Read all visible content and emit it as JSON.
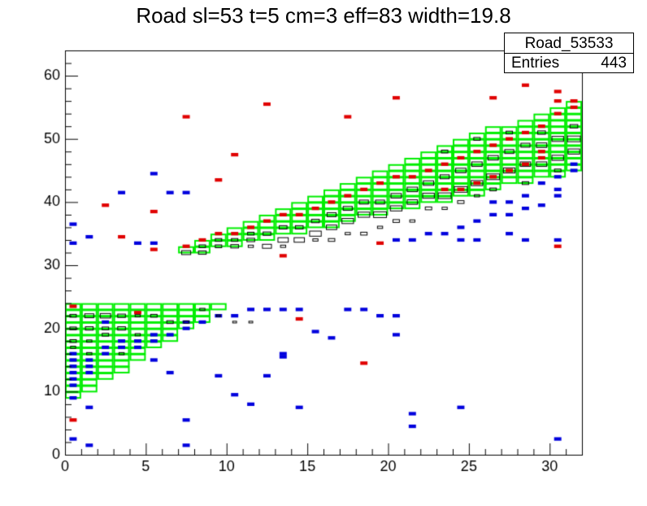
{
  "title": "Road sl=53 t=5 cm=3 eff=83 width=19.8",
  "stats": {
    "name": "Road_53533",
    "entries_label": "Entries",
    "entries_value": "443"
  },
  "colors": {
    "road": "#00ee00",
    "red_marks": "#e00000",
    "blue_marks": "#0000dd",
    "box": "#000000"
  },
  "chart_data": {
    "type": "heatmap",
    "title": "Road sl=53 t=5 cm=3 eff=83 width=19.8",
    "xlabel": "",
    "ylabel": "",
    "xlim": [
      0,
      32
    ],
    "ylim": [
      0,
      64
    ],
    "xticks": [
      0,
      5,
      10,
      15,
      20,
      25,
      30
    ],
    "yticks": [
      0,
      10,
      20,
      30,
      40,
      50,
      60
    ],
    "road_bands": [
      {
        "x_start": 0,
        "x_end": 16,
        "y_low_at_start": 9,
        "y_low_slope": 1.6,
        "y_high": 24
      },
      {
        "x_start": 7,
        "x_end": 32,
        "y_low_at_start": 32,
        "y_low_slope": 0.55,
        "y_high_at_start": 33,
        "y_high_slope": 0.95
      }
    ],
    "blue_points": [
      [
        0.5,
        14
      ],
      [
        0.5,
        13
      ],
      [
        0.5,
        15
      ],
      [
        0.5,
        12
      ],
      [
        0.5,
        16
      ],
      [
        0.5,
        11
      ],
      [
        1.5,
        14
      ],
      [
        1.5,
        13
      ],
      [
        1.5,
        15
      ],
      [
        2.5,
        16
      ],
      [
        2.5,
        17
      ],
      [
        3.5,
        17
      ],
      [
        3.5,
        18
      ],
      [
        4.5,
        18
      ],
      [
        4.5,
        17
      ],
      [
        5.5,
        19
      ],
      [
        5.5,
        18
      ],
      [
        6.5,
        19
      ],
      [
        7.5,
        20
      ],
      [
        7.5,
        21
      ],
      [
        8.5,
        21
      ],
      [
        9.5,
        22
      ],
      [
        10.5,
        22
      ],
      [
        11.5,
        23
      ],
      [
        12.5,
        23
      ],
      [
        13.5,
        23
      ],
      [
        14.5,
        23
      ],
      [
        5.5,
        15
      ],
      [
        6.5,
        13
      ],
      [
        2.5,
        21
      ],
      [
        1.5,
        7.5
      ],
      [
        0.5,
        9
      ],
      [
        0.5,
        2.5
      ],
      [
        1.5,
        1.5
      ],
      [
        7.5,
        1.5
      ],
      [
        7.5,
        5.5
      ],
      [
        10.5,
        9.5
      ],
      [
        11.5,
        8
      ],
      [
        13.5,
        16
      ],
      [
        13.5,
        15.5
      ],
      [
        14.5,
        7.5
      ],
      [
        17.5,
        23
      ],
      [
        18.5,
        23
      ],
      [
        19.5,
        22
      ],
      [
        20.5,
        22
      ],
      [
        20.5,
        19
      ],
      [
        21.5,
        4.5
      ],
      [
        21.5,
        6.5
      ],
      [
        24.5,
        7.5
      ],
      [
        30.5,
        2.5
      ],
      [
        15.5,
        19.5
      ],
      [
        16.5,
        18.5
      ],
      [
        9.5,
        12.5
      ],
      [
        12.5,
        12.5
      ],
      [
        0.5,
        36.5
      ],
      [
        0.5,
        33.5
      ],
      [
        1.5,
        34.5
      ],
      [
        3.5,
        41.5
      ],
      [
        4.5,
        33.5
      ],
      [
        5.5,
        33.5
      ],
      [
        7.5,
        41.5
      ],
      [
        5.5,
        44.5
      ],
      [
        6.5,
        41.5
      ],
      [
        30.5,
        42
      ],
      [
        30.5,
        41
      ],
      [
        29.5,
        39.5
      ],
      [
        28.5,
        39
      ],
      [
        27.5,
        38
      ],
      [
        26.5,
        38
      ],
      [
        25.5,
        37
      ],
      [
        24.5,
        36
      ],
      [
        23.5,
        35
      ],
      [
        22.5,
        35
      ],
      [
        21.5,
        34
      ],
      [
        20.5,
        34
      ],
      [
        24.5,
        34
      ],
      [
        25.5,
        34
      ],
      [
        27.5,
        35
      ],
      [
        28.5,
        34
      ],
      [
        30.5,
        34
      ],
      [
        31.5,
        45
      ],
      [
        31.5,
        46
      ],
      [
        30.5,
        44
      ],
      [
        29.5,
        43
      ],
      [
        28.5,
        41
      ],
      [
        27.5,
        40
      ],
      [
        26.5,
        40
      ]
    ],
    "red_points": [
      [
        7.5,
        33
      ],
      [
        8.5,
        34
      ],
      [
        9.5,
        35
      ],
      [
        10.5,
        35
      ],
      [
        11.5,
        36
      ],
      [
        12.5,
        37
      ],
      [
        13.5,
        38
      ],
      [
        14.5,
        38
      ],
      [
        15.5,
        39
      ],
      [
        16.5,
        40
      ],
      [
        17.5,
        41
      ],
      [
        18.5,
        42
      ],
      [
        19.5,
        43
      ],
      [
        20.5,
        44
      ],
      [
        21.5,
        44
      ],
      [
        22.5,
        45
      ],
      [
        23.5,
        46
      ],
      [
        24.5,
        47
      ],
      [
        25.5,
        48
      ],
      [
        26.5,
        49
      ],
      [
        27.5,
        50
      ],
      [
        28.5,
        51
      ],
      [
        29.5,
        52
      ],
      [
        30.5,
        54
      ],
      [
        31.5,
        55
      ],
      [
        30.5,
        56
      ],
      [
        31.5,
        56
      ],
      [
        30.5,
        57.5
      ],
      [
        28.5,
        58.5
      ],
      [
        26.5,
        56.5
      ],
      [
        20.5,
        56.5
      ],
      [
        17.5,
        53.5
      ],
      [
        12.5,
        55.5
      ],
      [
        7.5,
        53.5
      ],
      [
        10.5,
        47.5
      ],
      [
        9.5,
        43.5
      ],
      [
        5.5,
        38.5
      ],
      [
        2.5,
        39.5
      ],
      [
        3.5,
        34.5
      ],
      [
        5.5,
        32.5
      ],
      [
        0.5,
        5.5
      ],
      [
        13.5,
        31.5
      ],
      [
        19.5,
        33.5
      ],
      [
        30.5,
        33
      ],
      [
        14.5,
        21.5
      ],
      [
        18.5,
        14.5
      ],
      [
        4.5,
        22.5
      ],
      [
        0.5,
        23.5
      ],
      [
        29.5,
        48
      ],
      [
        29.5,
        47
      ],
      [
        28.5,
        46
      ],
      [
        27.5,
        45
      ],
      [
        26.5,
        44
      ],
      [
        25.5,
        43
      ],
      [
        24.5,
        42
      ],
      [
        23.5,
        42
      ]
    ],
    "black_boxes": [
      [
        0.5,
        22,
        0.5
      ],
      [
        1.5,
        22,
        0.7
      ],
      [
        2.5,
        22,
        0.8
      ],
      [
        3.5,
        22,
        0.6
      ],
      [
        4.5,
        22,
        0.4
      ],
      [
        5.5,
        22,
        0.5
      ],
      [
        6.5,
        21,
        0.5
      ],
      [
        7.5,
        21,
        0.4
      ],
      [
        0.5,
        20,
        0.5
      ],
      [
        1.5,
        20,
        0.6
      ],
      [
        2.5,
        20,
        0.5
      ],
      [
        3.5,
        20,
        0.6
      ],
      [
        4.5,
        19,
        0.4
      ],
      [
        0.5,
        18,
        0.5
      ],
      [
        1.5,
        18,
        0.4
      ],
      [
        2.5,
        19,
        0.5
      ],
      [
        0.5,
        17,
        0.4
      ],
      [
        1.5,
        16,
        0.4
      ],
      [
        3.5,
        16,
        0.4
      ],
      [
        8.5,
        23,
        0.4
      ],
      [
        9.5,
        22,
        0.3
      ],
      [
        10.5,
        21,
        0.3
      ],
      [
        11.5,
        21,
        0.3
      ],
      [
        7.5,
        32,
        0.7
      ],
      [
        8.5,
        32,
        0.6
      ],
      [
        9.5,
        33,
        0.5
      ],
      [
        10.5,
        33,
        0.6
      ],
      [
        11.5,
        34,
        0.6
      ],
      [
        12.5,
        33,
        0.7
      ],
      [
        13.5,
        34,
        0.8
      ],
      [
        14.5,
        34,
        0.8
      ],
      [
        15.5,
        35,
        0.9
      ],
      [
        16.5,
        36,
        0.8
      ],
      [
        17.5,
        37,
        0.9
      ],
      [
        18.5,
        38,
        0.9
      ],
      [
        19.5,
        38,
        1.0
      ],
      [
        20.5,
        39,
        0.9
      ],
      [
        21.5,
        40,
        0.8
      ],
      [
        22.5,
        41,
        0.9
      ],
      [
        23.5,
        41,
        1.0
      ],
      [
        24.5,
        42,
        1.0
      ],
      [
        25.5,
        43,
        0.9
      ],
      [
        26.5,
        44,
        1.0
      ],
      [
        27.5,
        45,
        0.9
      ],
      [
        28.5,
        46,
        0.8
      ],
      [
        29.5,
        46,
        0.8
      ],
      [
        30.5,
        47,
        0.9
      ],
      [
        31.5,
        48,
        0.9
      ],
      [
        31.5,
        50,
        1.0
      ],
      [
        30.5,
        50,
        0.9
      ],
      [
        29.5,
        49,
        0.8
      ],
      [
        28.5,
        49,
        0.7
      ],
      [
        27.5,
        48,
        0.7
      ],
      [
        26.5,
        47,
        0.8
      ],
      [
        25.5,
        46,
        0.8
      ],
      [
        24.5,
        45,
        0.8
      ],
      [
        23.5,
        44,
        0.7
      ],
      [
        22.5,
        43,
        0.8
      ],
      [
        21.5,
        42,
        0.8
      ],
      [
        20.5,
        41,
        0.8
      ],
      [
        19.5,
        40,
        0.7
      ],
      [
        18.5,
        40,
        0.7
      ],
      [
        17.5,
        39,
        0.7
      ],
      [
        16.5,
        38,
        0.7
      ],
      [
        15.5,
        37,
        0.6
      ],
      [
        14.5,
        36,
        0.6
      ],
      [
        13.5,
        36,
        0.6
      ],
      [
        12.5,
        35,
        0.6
      ],
      [
        11.5,
        35,
        0.5
      ],
      [
        10.5,
        34,
        0.5
      ],
      [
        9.5,
        34,
        0.5
      ],
      [
        8.5,
        33,
        0.5
      ],
      [
        16.5,
        34,
        0.5
      ],
      [
        18.5,
        35,
        0.5
      ],
      [
        20.5,
        37,
        0.5
      ],
      [
        22.5,
        39,
        0.5
      ],
      [
        24.5,
        40,
        0.5
      ],
      [
        26.5,
        42,
        0.5
      ],
      [
        28.5,
        43,
        0.5
      ],
      [
        30.5,
        45,
        0.5
      ],
      [
        29.5,
        51,
        0.6
      ],
      [
        31.5,
        52,
        0.6
      ],
      [
        27.5,
        51,
        0.5
      ],
      [
        25.5,
        50,
        0.5
      ],
      [
        23.5,
        48,
        0.5
      ],
      [
        19.5,
        36,
        0.4
      ],
      [
        17.5,
        35,
        0.4
      ],
      [
        15.5,
        34,
        0.4
      ],
      [
        13.5,
        33,
        0.4
      ],
      [
        11.5,
        33,
        0.4
      ],
      [
        21.5,
        37,
        0.4
      ],
      [
        23.5,
        39,
        0.4
      ],
      [
        25.5,
        41,
        0.4
      ]
    ]
  }
}
